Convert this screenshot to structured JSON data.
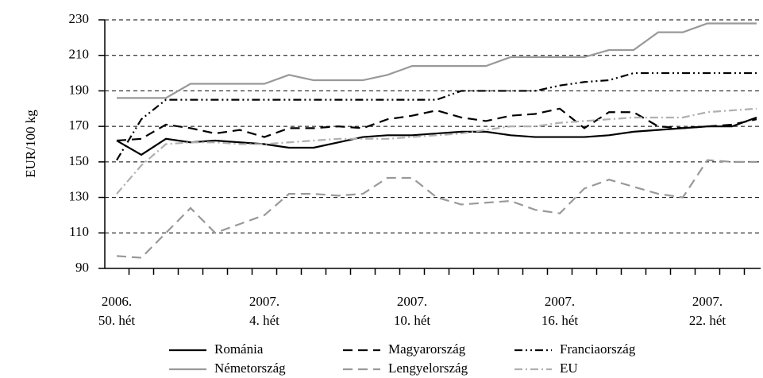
{
  "chart_data": {
    "type": "line",
    "ylabel": "EUR/100 kg",
    "categories": [
      [
        "2006.",
        "50. hét"
      ],
      null,
      null,
      null,
      null,
      null,
      [
        "2007.",
        "4. hét"
      ],
      null,
      null,
      null,
      null,
      null,
      [
        "2007.",
        "10. hét"
      ],
      null,
      null,
      null,
      null,
      null,
      [
        "2007.",
        "16. hét"
      ],
      null,
      null,
      null,
      null,
      null,
      [
        "2007.",
        "22. hét"
      ],
      null,
      null
    ],
    "series": [
      {
        "name": "Románia",
        "color": "#000000",
        "style": "solid",
        "values": [
          162,
          154,
          163,
          161,
          162,
          161,
          160,
          158,
          158,
          161,
          164,
          165,
          165,
          166,
          167,
          167,
          165,
          164,
          164,
          164,
          165,
          167,
          168,
          169,
          170,
          170,
          175
        ]
      },
      {
        "name": "Magyarország",
        "color": "#000000",
        "style": "dashed",
        "values": [
          162,
          163,
          171,
          169,
          166,
          168,
          164,
          169,
          169,
          170,
          169,
          174,
          176,
          179,
          175,
          173,
          176,
          177,
          180,
          169,
          178,
          178,
          170,
          169,
          170,
          171,
          174
        ]
      },
      {
        "name": "Franciaország",
        "color": "#000000",
        "style": "dashdotdot",
        "values": [
          151,
          174,
          185,
          185,
          185,
          185,
          185,
          185,
          185,
          185,
          185,
          185,
          185,
          185,
          190,
          190,
          190,
          190,
          193,
          195,
          196,
          200,
          200,
          200,
          200,
          200,
          200
        ]
      },
      {
        "name": "Németország",
        "color": "#999999",
        "style": "solid",
        "values": [
          186,
          186,
          186,
          194,
          194,
          194,
          194,
          199,
          196,
          196,
          196,
          199,
          204,
          204,
          204,
          204,
          209,
          209,
          209,
          209,
          213,
          213,
          223,
          223,
          228,
          228,
          228
        ]
      },
      {
        "name": "Lengyelország",
        "color": "#999999",
        "style": "dashed",
        "values": [
          97,
          96,
          110,
          124,
          110,
          115,
          120,
          132,
          132,
          131,
          132,
          141,
          141,
          130,
          126,
          127,
          128,
          123,
          121,
          135,
          140,
          136,
          132,
          130,
          151,
          150,
          150
        ]
      },
      {
        "name": "EU",
        "color": "#b0b0b0",
        "style": "dashdot",
        "values": [
          132,
          148,
          160,
          161,
          161,
          160,
          160,
          161,
          162,
          163,
          163,
          163,
          164,
          165,
          166,
          168,
          170,
          170,
          172,
          173,
          174,
          175,
          175,
          175,
          178,
          179,
          180
        ]
      }
    ],
    "ylim": [
      90,
      230
    ],
    "yticks": [
      90,
      110,
      130,
      150,
      170,
      190,
      210,
      230
    ],
    "grid": true,
    "legend": "bottom"
  }
}
